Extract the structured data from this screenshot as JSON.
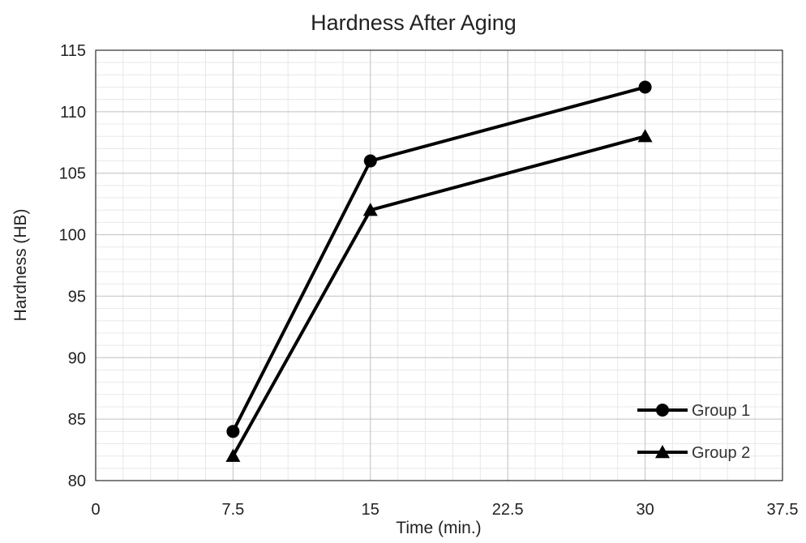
{
  "chart_data": {
    "type": "line",
    "title": "Hardness After Aging",
    "xlabel": "Time (min.)",
    "ylabel": "Hardness (HB)",
    "xlim": [
      0,
      37.5
    ],
    "ylim": [
      80,
      115
    ],
    "x_ticks": [
      0,
      7.5,
      15,
      22.5,
      30,
      37.5
    ],
    "x_tick_labels": [
      "0",
      "7.5",
      "15",
      "22.5",
      "30",
      "37.5"
    ],
    "y_ticks": [
      80,
      85,
      90,
      95,
      100,
      105,
      110,
      115
    ],
    "y_tick_labels": [
      "80",
      "85",
      "90",
      "95",
      "100",
      "105",
      "110",
      "115"
    ],
    "grid": true,
    "minor_grid": true,
    "legend_position": "bottom-right",
    "series": [
      {
        "name": "Group 1",
        "marker": "circle",
        "color": "#000000",
        "x": [
          7.5,
          15,
          30
        ],
        "y": [
          84,
          106,
          112
        ]
      },
      {
        "name": "Group 2",
        "marker": "triangle",
        "color": "#000000",
        "x": [
          7.5,
          15,
          30
        ],
        "y": [
          82,
          102,
          108
        ]
      }
    ]
  }
}
